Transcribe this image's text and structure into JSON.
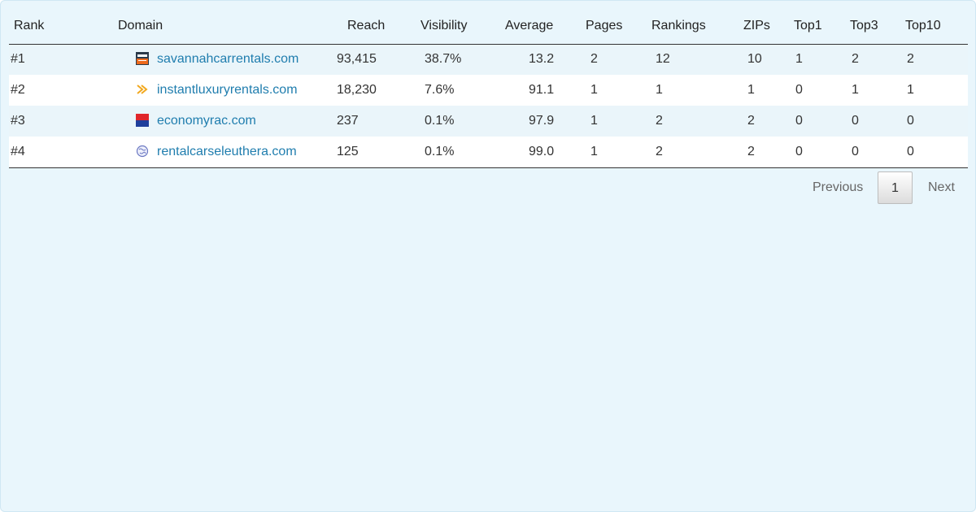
{
  "table": {
    "columns": [
      "Rank",
      "Domain",
      "Reach",
      "Visibility",
      "Average",
      "Pages",
      "Rankings",
      "ZIPs",
      "Top1",
      "Top3",
      "Top10"
    ],
    "rows": [
      {
        "rank": "#1",
        "domain": "savannahcarrentals.com",
        "icon": "site-favicon-dark-orange",
        "reach": "93,415",
        "visibility": "38.7%",
        "average": "13.2",
        "pages": "2",
        "rankings": "12",
        "zips": "10",
        "top1": "1",
        "top3": "2",
        "top10": "2"
      },
      {
        "rank": "#2",
        "domain": "instantluxuryrentals.com",
        "icon": "double-chevron-favicon",
        "reach": "18,230",
        "visibility": "7.6%",
        "average": "91.1",
        "pages": "1",
        "rankings": "1",
        "zips": "1",
        "top1": "0",
        "top3": "1",
        "top10": "1"
      },
      {
        "rank": "#3",
        "domain": "economyrac.com",
        "icon": "red-blue-flag-favicon",
        "reach": "237",
        "visibility": "0.1%",
        "average": "97.9",
        "pages": "1",
        "rankings": "2",
        "zips": "2",
        "top1": "0",
        "top3": "0",
        "top10": "0"
      },
      {
        "rank": "#4",
        "domain": "rentalcarseleuthera.com",
        "icon": "globe-favicon",
        "reach": "125",
        "visibility": "0.1%",
        "average": "99.0",
        "pages": "1",
        "rankings": "2",
        "zips": "2",
        "top1": "0",
        "top3": "0",
        "top10": "0"
      }
    ]
  },
  "pagination": {
    "previous": "Previous",
    "current": "1",
    "next": "Next"
  },
  "colors": {
    "link": "#1f7dae",
    "panel_bg": "#e9f6fc",
    "row_alt": "#eaf5fa"
  }
}
